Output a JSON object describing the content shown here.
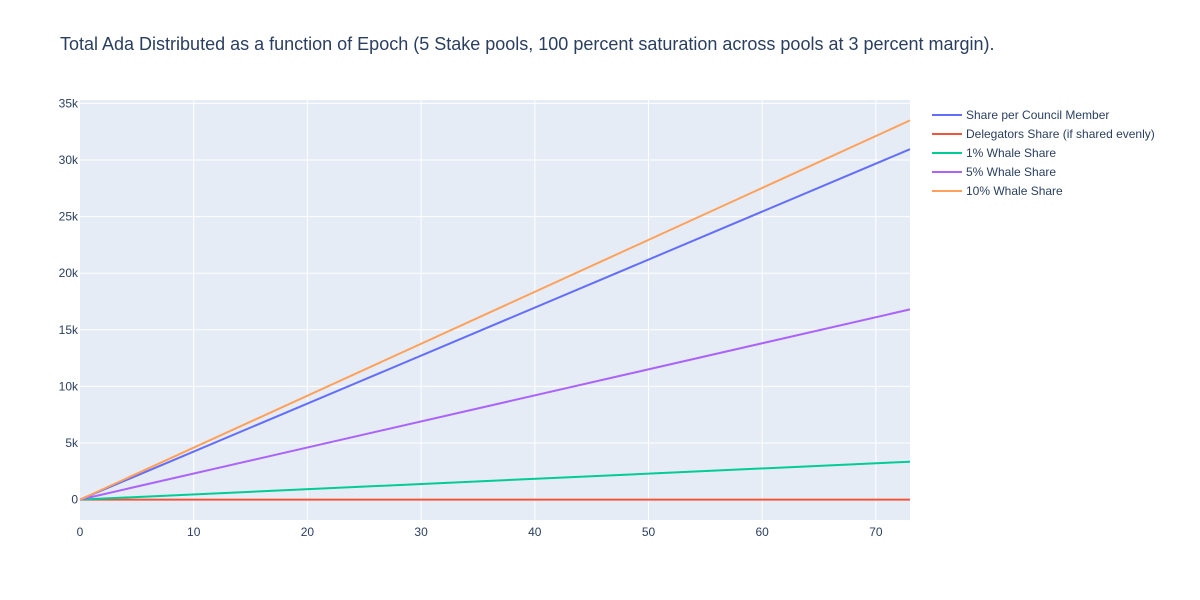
{
  "chart_data": {
    "type": "line",
    "title": "Total Ada Distributed as a function of Epoch (5 Stake pools, 100 percent saturation across pools at 3 percent margin).",
    "xlabel": "",
    "ylabel": "",
    "xlim": [
      0,
      73
    ],
    "ylim": [
      -1800,
      35300
    ],
    "x_ticks": [
      0,
      10,
      20,
      30,
      40,
      50,
      60,
      70
    ],
    "x_tick_labels": [
      "0",
      "10",
      "20",
      "30",
      "40",
      "50",
      "60",
      "70"
    ],
    "y_ticks": [
      0,
      5000,
      10000,
      15000,
      20000,
      25000,
      30000,
      35000
    ],
    "y_tick_labels": [
      "0",
      "5k",
      "10k",
      "15k",
      "20k",
      "25k",
      "30k",
      "35k"
    ],
    "grid": true,
    "legend_position": "right",
    "plot_bg": "#e5ecf6",
    "grid_color": "#ffffff",
    "x": [
      0,
      73
    ],
    "series": [
      {
        "name": "Share per Council Member",
        "color": "#636efa",
        "values": [
          0,
          30950
        ]
      },
      {
        "name": "Delegators Share (if shared evenly)",
        "color": "#ef553b",
        "values": [
          0,
          2
        ]
      },
      {
        "name": "1% Whale Share",
        "color": "#00cc96",
        "values": [
          0,
          3350
        ]
      },
      {
        "name": "5% Whale Share",
        "color": "#ab63fa",
        "values": [
          0,
          16800
        ]
      },
      {
        "name": "10% Whale Share",
        "color": "#ffa15a",
        "values": [
          0,
          33500
        ]
      }
    ]
  }
}
